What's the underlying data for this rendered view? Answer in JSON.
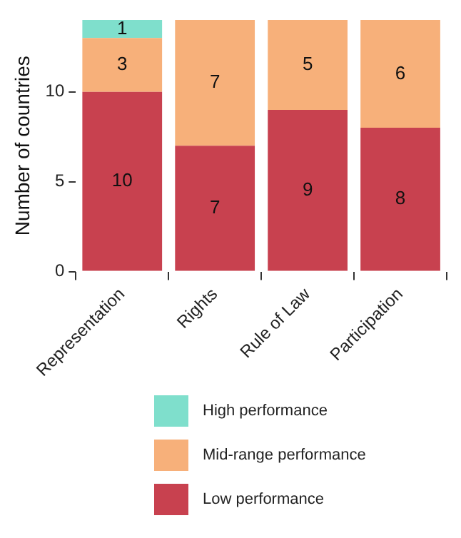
{
  "chart_data": {
    "type": "bar",
    "stacked": true,
    "ylabel": "Number of countries",
    "categories": [
      "Representation",
      "Rights",
      "Rule of Law",
      "Participation"
    ],
    "ylim": [
      0,
      14
    ],
    "yticks": [
      0,
      5,
      10
    ],
    "grid": false,
    "legend": "bottom",
    "series": [
      {
        "name": "Low performance",
        "color": "#c8414f",
        "values": [
          10,
          7,
          9,
          8
        ],
        "value_labels": [
          "10",
          "7",
          "9",
          "8"
        ]
      },
      {
        "name": "Mid-range performance",
        "color": "#f7b07a",
        "values": [
          3,
          7,
          5,
          6
        ],
        "value_labels": [
          "3",
          "7",
          "5",
          "6"
        ]
      },
      {
        "name": "High performance",
        "color": "#7fdfcc",
        "values": [
          1,
          0,
          0,
          0
        ],
        "value_labels": [
          "1",
          null,
          null,
          null
        ]
      }
    ]
  }
}
